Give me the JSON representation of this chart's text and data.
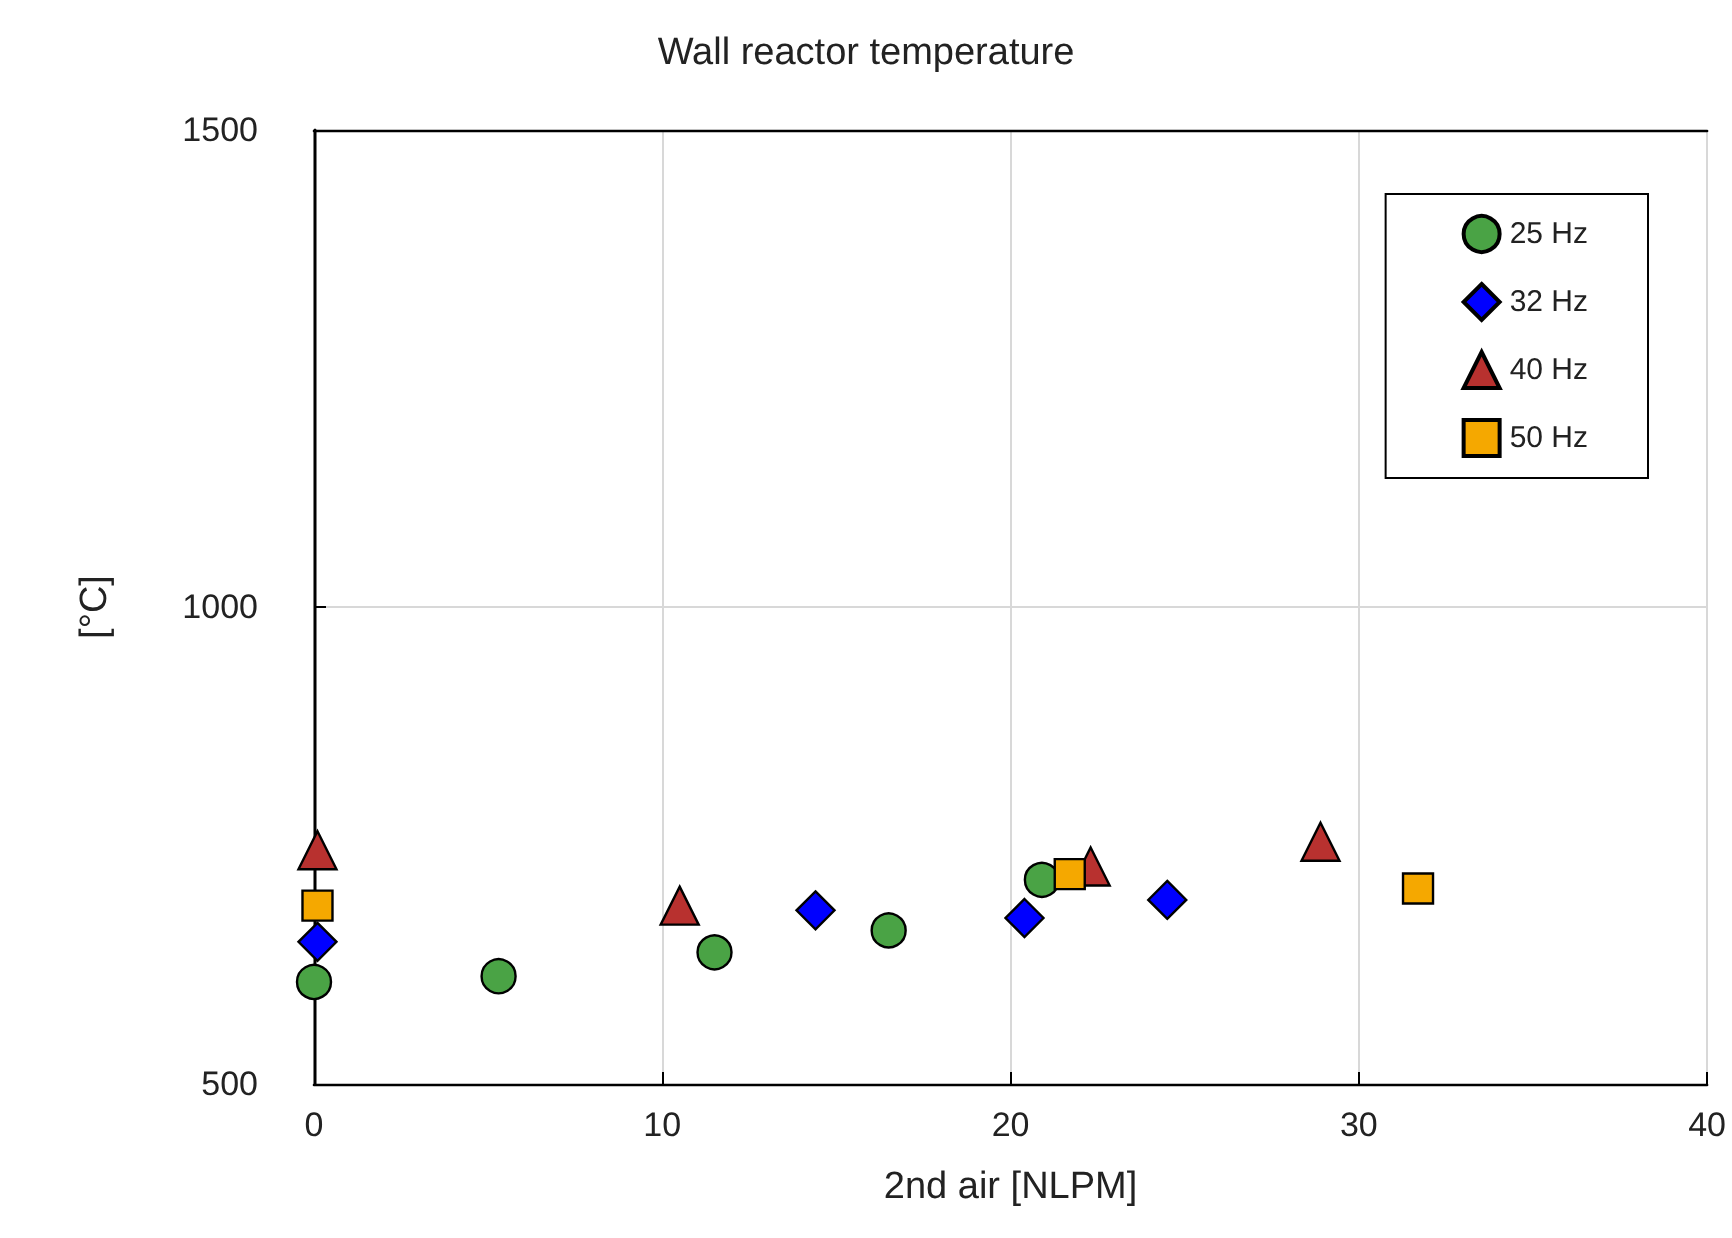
{
  "chart_data": {
    "type": "scatter",
    "title": "Wall reactor temperature",
    "xlabel": "2nd air [NLPM]",
    "ylabel": "[°C]",
    "xlim": [
      0,
      40
    ],
    "xticks": [
      0,
      10,
      20,
      30,
      40
    ],
    "ylim": [
      500,
      1500
    ],
    "yticks": [
      500,
      1000,
      1500
    ],
    "grid": true,
    "legend": "top right",
    "series": [
      {
        "name": "25 Hz",
        "color": "#4aa345",
        "marker": "circle",
        "x": [
          0,
          5.3,
          11.5,
          16.5,
          20.9
        ],
        "values": [
          607,
          613,
          638,
          661,
          714
        ]
      },
      {
        "name": "32 Hz",
        "color": "#0000ff",
        "marker": "diamond",
        "x": [
          0.1,
          14.4,
          20.4,
          24.5
        ],
        "values": [
          649,
          682,
          674,
          693
        ]
      },
      {
        "name": "40 Hz",
        "color": "#b8312f",
        "marker": "triangle",
        "x": [
          0.1,
          10.5,
          22.3,
          28.9
        ],
        "values": [
          745,
          687,
          728,
          754
        ]
      },
      {
        "name": "50 Hz",
        "color": "#f5a800",
        "marker": "square",
        "x": [
          0.1,
          21.7,
          31.7
        ],
        "values": [
          687,
          720,
          705
        ]
      }
    ]
  }
}
